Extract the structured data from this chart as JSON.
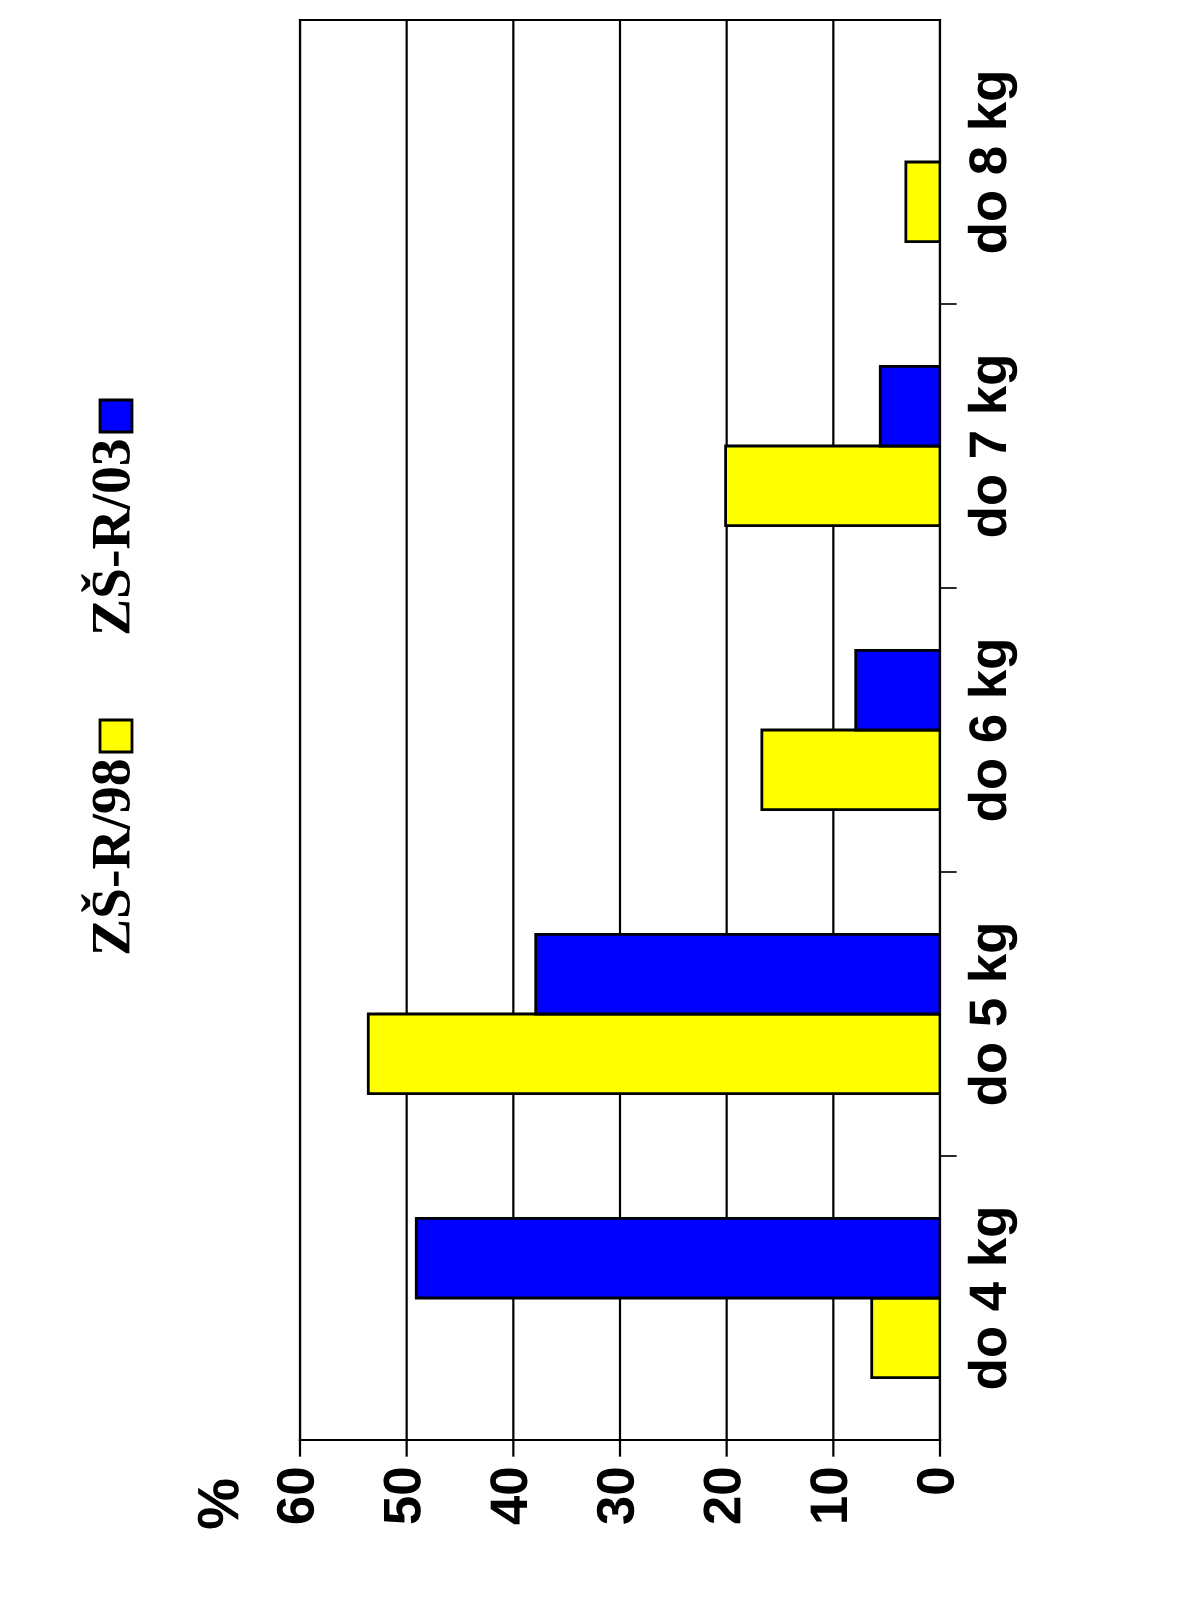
{
  "chart_data": {
    "type": "bar",
    "orientation": "horizontal",
    "annotations": [
      "%"
    ],
    "categories": [
      "do 8 kg",
      "do 7 kg",
      "do 6 kg",
      "do 5 kg",
      "do 4 kg"
    ],
    "series": [
      {
        "name": "ZŠ-R/98",
        "color": "#ffff00",
        "values": [
          3.2,
          20.1,
          16.7,
          53.6,
          6.4
        ]
      },
      {
        "name": "ZŠ-R/03",
        "color": "#0000ff",
        "values": [
          null,
          5.6,
          7.9,
          37.9,
          49.1
        ]
      }
    ],
    "xlim": [
      60,
      0
    ],
    "xticks": [
      60,
      50,
      40,
      30,
      20,
      10,
      0
    ],
    "grid": "x",
    "legend": "left"
  }
}
